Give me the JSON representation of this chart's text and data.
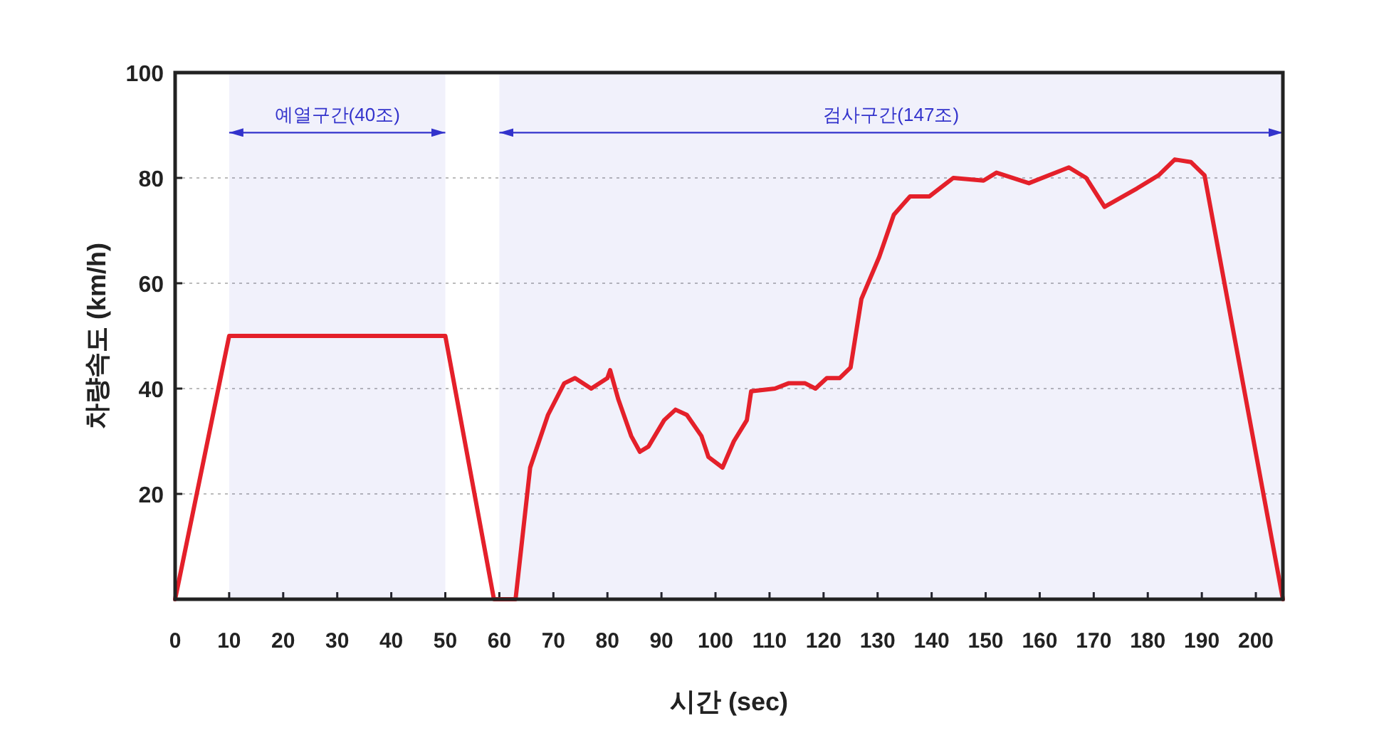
{
  "chart_data": {
    "type": "line",
    "xlabel": "시간 (sec)",
    "ylabel": "차량속도 (km/h)",
    "x": [
      0,
      10,
      50,
      59,
      63,
      65.7,
      69,
      72,
      74,
      77,
      80,
      80.5,
      82,
      84.4,
      86,
      87.6,
      90.5,
      92.6,
      94.7,
      97.4,
      98.7,
      101.3,
      103.4,
      105.8,
      106.6,
      111,
      113.5,
      116.6,
      118.5,
      120.6,
      123,
      125,
      127,
      130.3,
      133,
      136,
      139.6,
      144,
      149.6,
      152,
      158,
      165.4,
      168.6,
      172,
      178,
      182,
      185,
      188,
      190.5,
      205
    ],
    "series": [
      {
        "color": "#e4202a",
        "values": [
          0,
          50,
          50,
          0,
          0,
          25,
          35,
          41,
          42,
          40,
          42,
          43.5,
          38,
          31,
          28,
          29,
          34,
          36,
          35,
          31,
          27,
          25,
          30,
          34,
          39.5,
          40,
          41,
          41,
          40,
          42,
          42,
          44,
          57,
          65,
          73,
          76.5,
          76.5,
          80,
          79.5,
          81,
          79,
          82,
          80,
          74.5,
          78,
          80.5,
          83.5,
          83,
          80.5,
          0
        ]
      }
    ],
    "xlim": [
      0,
      205
    ],
    "ylim": [
      0,
      100
    ],
    "xticks": [
      0,
      10,
      20,
      30,
      40,
      50,
      60,
      70,
      80,
      90,
      100,
      110,
      120,
      130,
      140,
      150,
      160,
      170,
      180,
      190,
      200
    ],
    "yticks": [
      20,
      40,
      60,
      80,
      100
    ],
    "grid": "y",
    "marker": "none",
    "line_style": "solid",
    "bands": [
      {
        "axis": "x",
        "from": 10,
        "to": 50,
        "label": "예열구간(40조)",
        "color": "#3333cc"
      },
      {
        "axis": "x",
        "from": 60,
        "to": 205,
        "label": "검사구간(147조)",
        "color": "#3333cc"
      }
    ]
  }
}
